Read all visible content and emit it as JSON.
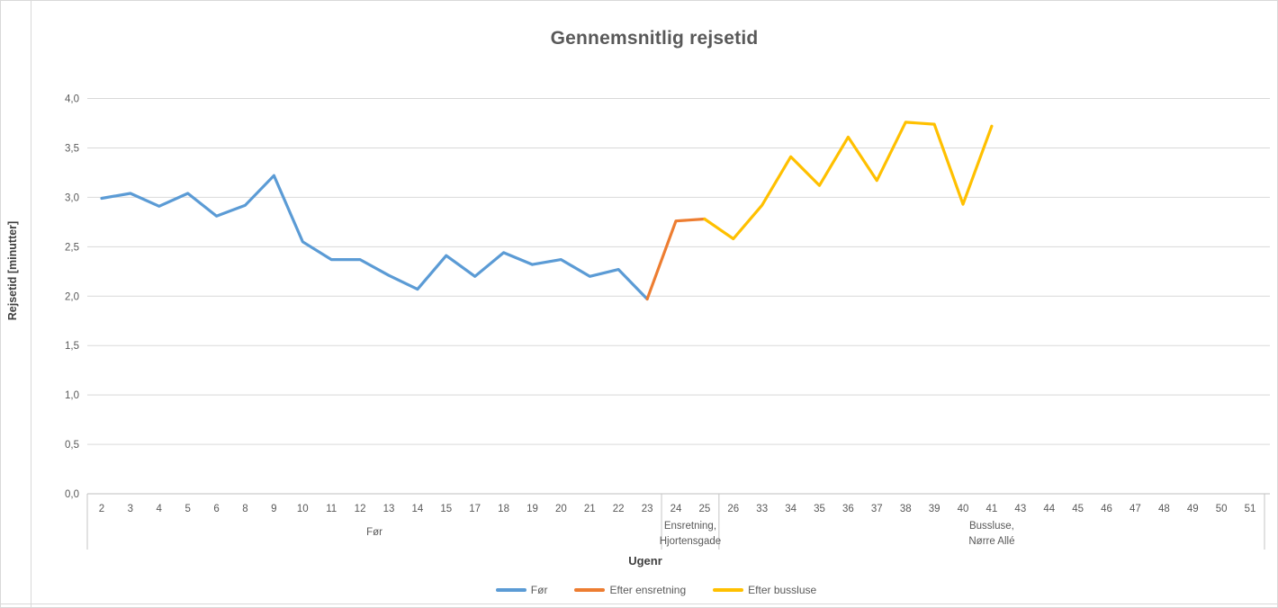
{
  "window": {
    "background": "#ffffff",
    "border_color": "#d9d9d9"
  },
  "chart_data": {
    "type": "line",
    "title": "Gennemsnitlig rejsetid",
    "xlabel": "Ugenr",
    "ylabel": "Rejsetid [minutter]",
    "ylim": [
      0,
      4
    ],
    "ytick_labels_bottom_to_top": [
      "0,0",
      "0,5",
      "1,0",
      "1,5",
      "2,0",
      "2,5",
      "3,0",
      "3,5",
      "4,0"
    ],
    "grid": "horizontal",
    "legend_position": "bottom",
    "categories": [
      "2",
      "3",
      "4",
      "5",
      "6",
      "8",
      "9",
      "10",
      "11",
      "12",
      "13",
      "14",
      "15",
      "17",
      "18",
      "19",
      "20",
      "21",
      "22",
      "23",
      "24",
      "25",
      "26",
      "33",
      "34",
      "35",
      "36",
      "37",
      "38",
      "39",
      "40",
      "41",
      "43",
      "44",
      "45",
      "46",
      "47",
      "48",
      "49",
      "50",
      "51"
    ],
    "category_groups": [
      {
        "label_lines": [
          "Før"
        ],
        "span": [
          0,
          19
        ]
      },
      {
        "label_lines": [
          "Ensretning,",
          "Hjortensgade"
        ],
        "span": [
          20,
          21
        ]
      },
      {
        "label_lines": [
          "Bussluse,",
          "Nørre Allé"
        ],
        "span": [
          22,
          40
        ]
      }
    ],
    "series": [
      {
        "name": "Før",
        "color": "#5B9BD5",
        "points": [
          [
            "2",
            2.99
          ],
          [
            "3",
            3.04
          ],
          [
            "4",
            2.91
          ],
          [
            "5",
            3.04
          ],
          [
            "6",
            2.81
          ],
          [
            "8",
            2.92
          ],
          [
            "9",
            3.22
          ],
          [
            "10",
            2.55
          ],
          [
            "11",
            2.37
          ],
          [
            "12",
            2.37
          ],
          [
            "13",
            2.21
          ],
          [
            "14",
            2.07
          ],
          [
            "15",
            2.41
          ],
          [
            "17",
            2.2
          ],
          [
            "18",
            2.44
          ],
          [
            "19",
            2.32
          ],
          [
            "20",
            2.37
          ],
          [
            "21",
            2.2
          ],
          [
            "22",
            2.27
          ],
          [
            "23",
            1.97
          ]
        ]
      },
      {
        "name": "Efter ensretning",
        "color": "#ED7D31",
        "points": [
          [
            "23",
            1.97
          ],
          [
            "24",
            2.76
          ],
          [
            "25",
            2.78
          ]
        ]
      },
      {
        "name": "Efter bussluse",
        "color": "#FFC000",
        "points": [
          [
            "25",
            2.78
          ],
          [
            "26",
            2.58
          ],
          [
            "33",
            2.92
          ],
          [
            "34",
            3.41
          ],
          [
            "35",
            3.12
          ],
          [
            "36",
            3.61
          ],
          [
            "37",
            3.17
          ],
          [
            "38",
            3.76
          ],
          [
            "39",
            3.74
          ],
          [
            "40",
            2.93
          ],
          [
            "41",
            3.72
          ]
        ]
      }
    ],
    "style_colors": {
      "gridline": "#d9d9d9",
      "axis_line": "#bfbfbf",
      "divider_line": "#c6c6c6",
      "tick_label": "#595959",
      "group_label": "#595959",
      "title": "#595959",
      "axis_title": "#404040"
    }
  }
}
